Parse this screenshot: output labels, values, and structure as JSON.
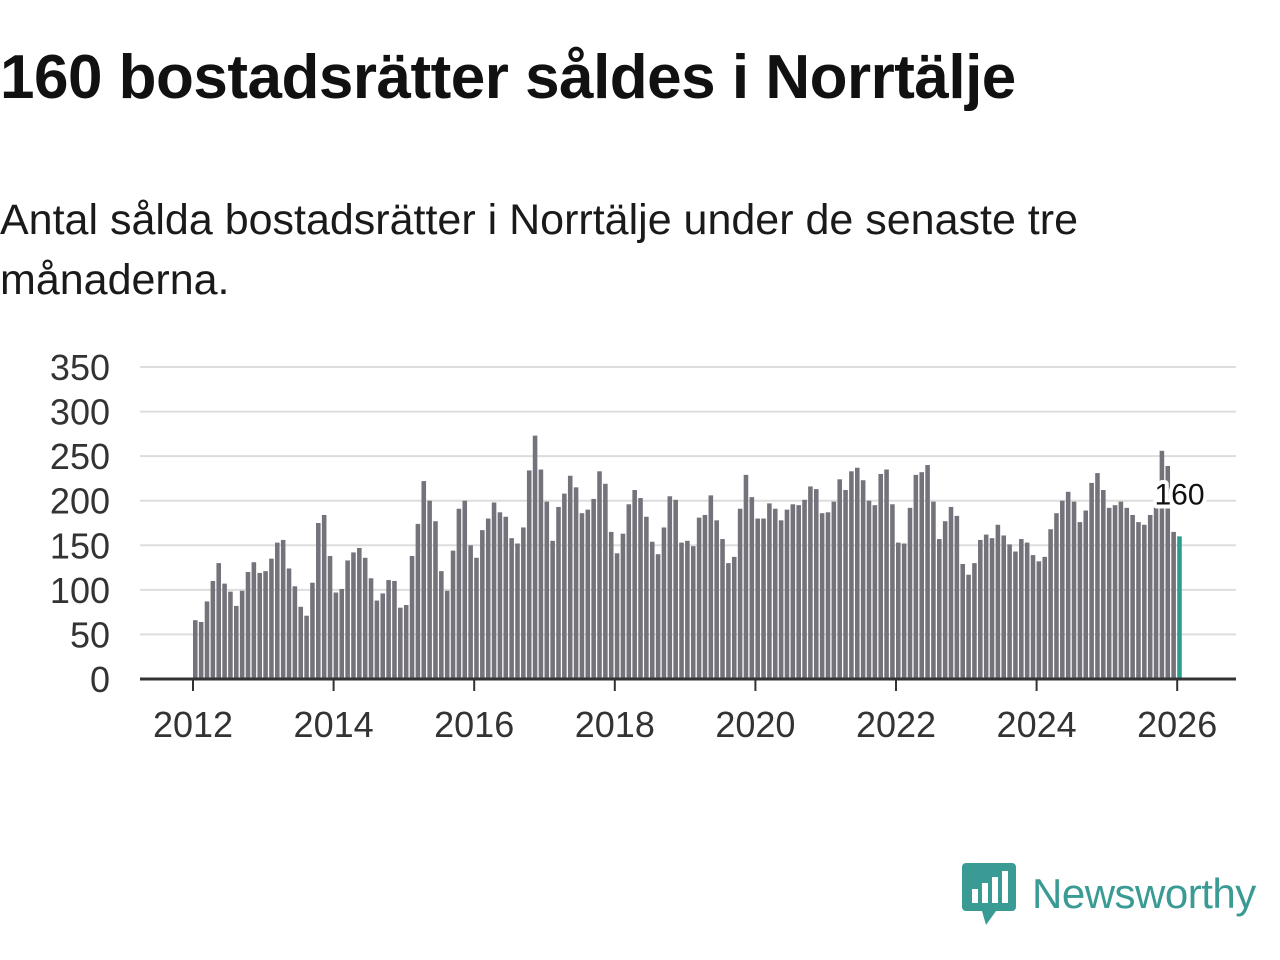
{
  "title": "160 bostadsrätter såldes i Norrtälje",
  "subtitle": "Antal sålda bostadsrätter i Norrtälje under de senaste tre månaderna.",
  "brand": {
    "name": "Newsworthy",
    "color": "#3a9a94",
    "icon": "newsworthy-logo-icon"
  },
  "colors": {
    "bar": "#74737b",
    "highlight": "#2a9d8f",
    "grid": "#dddddd",
    "axis": "#333333"
  },
  "chart_data": {
    "type": "bar",
    "title": "Antal sålda bostadsrätter i Norrtälje under de senaste tre månaderna.",
    "xlabel": "",
    "ylabel": "",
    "ylim": [
      0,
      350
    ],
    "y_ticks": [
      0,
      50,
      100,
      150,
      200,
      250,
      300,
      350
    ],
    "x_ticks": [
      2012,
      2014,
      2016,
      2018,
      2020,
      2022,
      2024,
      2026
    ],
    "start": "2012-01",
    "frequency": "monthly",
    "values": [
      66,
      64,
      87,
      110,
      130,
      107,
      98,
      82,
      99,
      120,
      131,
      119,
      121,
      135,
      153,
      156,
      124,
      104,
      81,
      71,
      108,
      175,
      184,
      138,
      97,
      101,
      133,
      142,
      147,
      136,
      113,
      88,
      96,
      111,
      110,
      80,
      83,
      138,
      174,
      222,
      200,
      177,
      121,
      99,
      144,
      191,
      200,
      150,
      136,
      167,
      180,
      198,
      187,
      182,
      158,
      152,
      170,
      234,
      273,
      235,
      199,
      155,
      193,
      208,
      228,
      215,
      186,
      190,
      202,
      233,
      219,
      165,
      141,
      163,
      196,
      212,
      203,
      182,
      154,
      140,
      170,
      205,
      201,
      153,
      155,
      149,
      181,
      184,
      206,
      178,
      157,
      130,
      137,
      191,
      229,
      204,
      180,
      180,
      197,
      191,
      178,
      190,
      196,
      195,
      201,
      216,
      213,
      186,
      187,
      199,
      224,
      212,
      233,
      237,
      223,
      200,
      195,
      230,
      235,
      196,
      153,
      152,
      192,
      229,
      232,
      240,
      199,
      157,
      177,
      193,
      183,
      129,
      117,
      130,
      156,
      162,
      158,
      173,
      161,
      151,
      143,
      157,
      153,
      139,
      132,
      137,
      168,
      186,
      200,
      210,
      199,
      176,
      189,
      220,
      231,
      212,
      192,
      195,
      199,
      192,
      184,
      176,
      173,
      184,
      198,
      256,
      239,
      165,
      160
    ],
    "highlight": {
      "index": 168,
      "value": 160,
      "label": "160"
    }
  }
}
